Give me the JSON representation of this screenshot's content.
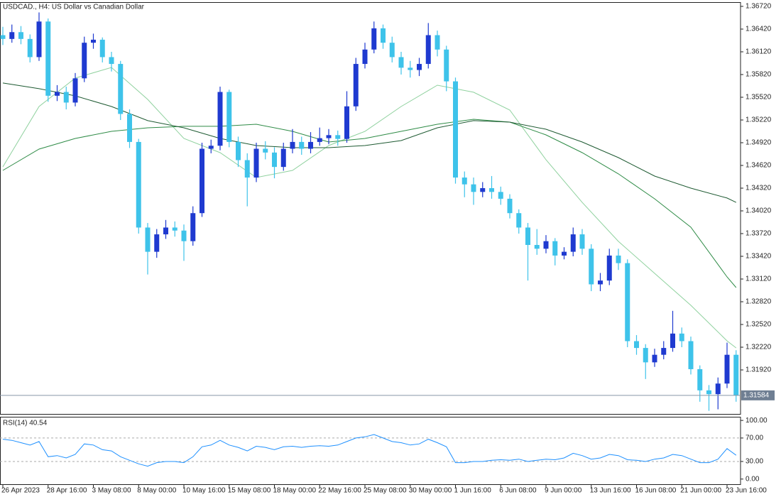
{
  "chart_data": [
    {
      "type": "candlestick",
      "title": "USDCAD., H4:  US Dollar vs Canadian Dollar",
      "categories": [
        "26 Apr 2023",
        null,
        null,
        null,
        null,
        "28 Apr 16:00",
        null,
        null,
        null,
        null,
        "3 May 08:00",
        null,
        null,
        null,
        null,
        "8 May 00:00",
        null,
        null,
        null,
        null,
        "10 May 16:00",
        null,
        null,
        null,
        null,
        "15 May 08:00",
        null,
        null,
        null,
        null,
        "18 May 00:00",
        null,
        null,
        null,
        null,
        "22 May 16:00",
        null,
        null,
        null,
        null,
        "25 May 08:00",
        null,
        null,
        null,
        null,
        "30 May 00:00",
        null,
        null,
        null,
        null,
        "1 Jun 16:00",
        null,
        null,
        null,
        null,
        "6 Jun 08:00",
        null,
        null,
        null,
        null,
        "9 Jun 00:00",
        null,
        null,
        null,
        null,
        "13 Jun 16:00",
        null,
        null,
        null,
        null,
        "16 Jun 08:00",
        null,
        null,
        null,
        null,
        "21 Jun 00:00",
        null,
        null,
        null,
        null,
        "23 Jun 16:00",
        null
      ],
      "ohlc": [
        [
          1.3634,
          1.3645,
          1.3621,
          1.3629
        ],
        [
          1.3629,
          1.3648,
          1.3624,
          1.3638
        ],
        [
          1.3638,
          1.3646,
          1.3622,
          1.3629
        ],
        [
          1.3629,
          1.3635,
          1.3598,
          1.3605
        ],
        [
          1.3605,
          1.3664,
          1.36,
          1.3652
        ],
        [
          1.3652,
          1.3656,
          1.3546,
          1.3554
        ],
        [
          1.3554,
          1.3568,
          1.3547,
          1.3559
        ],
        [
          1.3559,
          1.3566,
          1.3536,
          1.3545
        ],
        [
          1.3545,
          1.3584,
          1.354,
          1.3577
        ],
        [
          1.3577,
          1.3632,
          1.3572,
          1.3624
        ],
        [
          1.3624,
          1.3636,
          1.3616,
          1.3628
        ],
        [
          1.3628,
          1.3631,
          1.3598,
          1.3605
        ],
        [
          1.3605,
          1.3612,
          1.3586,
          1.3596
        ],
        [
          1.3596,
          1.36,
          1.3522,
          1.353
        ],
        [
          1.353,
          1.3536,
          1.3485,
          1.3493
        ],
        [
          1.3493,
          1.3497,
          1.3372,
          1.338
        ],
        [
          1.338,
          1.3386,
          1.3318,
          1.3348
        ],
        [
          1.3348,
          1.3378,
          1.334,
          1.3371
        ],
        [
          1.3371,
          1.339,
          1.3365,
          1.338
        ],
        [
          1.338,
          1.3388,
          1.3368,
          1.3376
        ],
        [
          1.3376,
          1.3384,
          1.3336,
          1.3362
        ],
        [
          1.3362,
          1.3408,
          1.3356,
          1.3399
        ],
        [
          1.3399,
          1.3492,
          1.3394,
          1.3484
        ],
        [
          1.3484,
          1.3496,
          1.3478,
          1.3488
        ],
        [
          1.3488,
          1.3566,
          1.3482,
          1.3559
        ],
        [
          1.3559,
          1.3562,
          1.3486,
          1.3493
        ],
        [
          1.3493,
          1.35,
          1.346,
          1.3469
        ],
        [
          1.3469,
          1.3478,
          1.3408,
          1.3446
        ],
        [
          1.3446,
          1.3492,
          1.344,
          1.3484
        ],
        [
          1.3484,
          1.3494,
          1.347,
          1.3479
        ],
        [
          1.3479,
          1.3486,
          1.3445,
          1.346
        ],
        [
          1.346,
          1.3492,
          1.3455,
          1.3484
        ],
        [
          1.3484,
          1.351,
          1.3478,
          1.3493
        ],
        [
          1.3493,
          1.35,
          1.3476,
          1.3484
        ],
        [
          1.3484,
          1.3506,
          1.3478,
          1.3493
        ],
        [
          1.3493,
          1.3512,
          1.3488,
          1.3498
        ],
        [
          1.3498,
          1.351,
          1.349,
          1.3502
        ],
        [
          1.3502,
          1.3508,
          1.3488,
          1.3497
        ],
        [
          1.3497,
          1.356,
          1.3492,
          1.354
        ],
        [
          1.354,
          1.3604,
          1.3534,
          1.3596
        ],
        [
          1.3596,
          1.3624,
          1.359,
          1.3615
        ],
        [
          1.3615,
          1.3652,
          1.361,
          1.3643
        ],
        [
          1.3643,
          1.3648,
          1.3616,
          1.3624
        ],
        [
          1.3624,
          1.3632,
          1.3598,
          1.3605
        ],
        [
          1.3605,
          1.3612,
          1.3582,
          1.3591
        ],
        [
          1.3591,
          1.36,
          1.3578,
          1.3588
        ],
        [
          1.3588,
          1.3604,
          1.358,
          1.3596
        ],
        [
          1.3596,
          1.365,
          1.359,
          1.3634
        ],
        [
          1.3634,
          1.364,
          1.3606,
          1.3615
        ],
        [
          1.3615,
          1.362,
          1.356,
          1.3573
        ],
        [
          1.3573,
          1.3578,
          1.3438,
          1.3446
        ],
        [
          1.3446,
          1.3454,
          1.342,
          1.3437
        ],
        [
          1.3437,
          1.3446,
          1.341,
          1.3427
        ],
        [
          1.3427,
          1.344,
          1.342,
          1.3432
        ],
        [
          1.3432,
          1.3448,
          1.3418,
          1.3427
        ],
        [
          1.3427,
          1.3434,
          1.341,
          1.3418
        ],
        [
          1.3418,
          1.3424,
          1.3392,
          1.3399
        ],
        [
          1.3399,
          1.3404,
          1.3372,
          1.338
        ],
        [
          1.338,
          1.3386,
          1.331,
          1.3357
        ],
        [
          1.3357,
          1.3378,
          1.3344,
          1.3352
        ],
        [
          1.3352,
          1.337,
          1.3346,
          1.3362
        ],
        [
          1.3362,
          1.3366,
          1.333,
          1.3343
        ],
        [
          1.3343,
          1.3354,
          1.3338,
          1.3348
        ],
        [
          1.3348,
          1.338,
          1.3342,
          1.3371
        ],
        [
          1.3371,
          1.3378,
          1.3344,
          1.3352
        ],
        [
          1.3352,
          1.3358,
          1.3296,
          1.3305
        ],
        [
          1.3305,
          1.332,
          1.3296,
          1.331
        ],
        [
          1.331,
          1.3352,
          1.3304,
          1.3343
        ],
        [
          1.3343,
          1.3352,
          1.3324,
          1.3333
        ],
        [
          1.3333,
          1.3338,
          1.3222,
          1.323
        ],
        [
          1.323,
          1.3238,
          1.3212,
          1.3221
        ],
        [
          1.3221,
          1.3226,
          1.318,
          1.3202
        ],
        [
          1.3202,
          1.322,
          1.3196,
          1.3212
        ],
        [
          1.3212,
          1.323,
          1.3206,
          1.3221
        ],
        [
          1.3221,
          1.327,
          1.3216,
          1.324
        ],
        [
          1.324,
          1.3248,
          1.3222,
          1.323
        ],
        [
          1.323,
          1.3236,
          1.3186,
          1.3193
        ],
        [
          1.3193,
          1.3198,
          1.315,
          1.3165
        ],
        [
          1.3165,
          1.3172,
          1.3138,
          1.316
        ],
        [
          1.316,
          1.3182,
          1.314,
          1.3174
        ],
        [
          1.3174,
          1.3228,
          1.3168,
          1.3212
        ],
        [
          1.3212,
          1.3218,
          1.315,
          1.31584
        ]
      ],
      "up_color": "#1f3ad0",
      "down_color": "#3ec3ea",
      "moving_averages": [
        {
          "color": "#8fd19e",
          "x": [
            0,
            4,
            8,
            12,
            16,
            20,
            24,
            28,
            32,
            36,
            40,
            44,
            48,
            52,
            56,
            60,
            64,
            68,
            72,
            76,
            80,
            81
          ],
          "values": [
            1.34601,
            1.35398,
            1.35773,
            1.35914,
            1.35492,
            1.34976,
            1.34789,
            1.34461,
            1.34554,
            1.34882,
            1.3507,
            1.35398,
            1.35679,
            1.35586,
            1.35351,
            1.34695,
            1.34132,
            1.33617,
            1.33195,
            1.32773,
            1.32304,
            1.32211
          ]
        },
        {
          "color": "#2e8b46",
          "x": [
            0,
            4,
            8,
            12,
            16,
            20,
            24,
            28,
            32,
            36,
            40,
            44,
            48,
            52,
            56,
            60,
            64,
            68,
            72,
            76,
            80,
            81
          ],
          "values": [
            1.34554,
            1.34836,
            1.34976,
            1.3507,
            1.35117,
            1.35136,
            1.35136,
            1.35164,
            1.3507,
            1.34929,
            1.34976,
            1.3507,
            1.35164,
            1.35229,
            1.35192,
            1.35023,
            1.34789,
            1.34508,
            1.34179,
            1.33804,
            1.33148,
            1.33008
          ]
        },
        {
          "color": "#1e5a32",
          "x": [
            0,
            4,
            8,
            12,
            16,
            20,
            24,
            28,
            32,
            36,
            40,
            44,
            48,
            52,
            56,
            60,
            64,
            68,
            72,
            76,
            80,
            81
          ],
          "values": [
            1.35708,
            1.35633,
            1.35539,
            1.35398,
            1.35211,
            1.35117,
            1.34976,
            1.34882,
            1.34854,
            1.34854,
            1.34882,
            1.34948,
            1.35117,
            1.35211,
            1.35192,
            1.35098,
            1.34929,
            1.34723,
            1.34479,
            1.3432,
            1.3419,
            1.34132
          ]
        }
      ],
      "last_price": 1.31584,
      "ylim": [
        1.31339,
        1.36776
      ],
      "yticks": [
        {
          "value": 1.3672,
          "label": "1.36720"
        },
        {
          "value": 1.3642,
          "label": "1.36420"
        },
        {
          "value": 1.3612,
          "label": "1.36120"
        },
        {
          "value": 1.3582,
          "label": "1.35820"
        },
        {
          "value": 1.3552,
          "label": "1.35520"
        },
        {
          "value": 1.3522,
          "label": "1.35220"
        },
        {
          "value": 1.3492,
          "label": "1.34920"
        },
        {
          "value": 1.3462,
          "label": "1.34620"
        },
        {
          "value": 1.3432,
          "label": "1.34320"
        },
        {
          "value": 1.3402,
          "label": "1.34020"
        },
        {
          "value": 1.3372,
          "label": "1.33720"
        },
        {
          "value": 1.3342,
          "label": "1.33420"
        },
        {
          "value": 1.3312,
          "label": "1.33120"
        },
        {
          "value": 1.3282,
          "label": "1.32820"
        },
        {
          "value": 1.3252,
          "label": "1.32520"
        },
        {
          "value": 1.3222,
          "label": "1.32220"
        },
        {
          "value": 1.3192,
          "label": "1.31920"
        }
      ],
      "grid": false
    },
    {
      "type": "line",
      "title": "RSI(14) 40.54",
      "color": "#1e90ff",
      "values": [
        68,
        66,
        62,
        58,
        64,
        38,
        40,
        36,
        42,
        60,
        58,
        50,
        48,
        38,
        32,
        26,
        22,
        28,
        30,
        30,
        28,
        38,
        55,
        58,
        66,
        58,
        54,
        48,
        56,
        54,
        50,
        55,
        56,
        54,
        56,
        57,
        56,
        58,
        64,
        70,
        72,
        76,
        70,
        64,
        62,
        58,
        60,
        68,
        62,
        55,
        28,
        28,
        30,
        30,
        32,
        33,
        32,
        34,
        30,
        32,
        34,
        33,
        36,
        44,
        40,
        34,
        36,
        42,
        40,
        33,
        32,
        30,
        34,
        36,
        42,
        40,
        34,
        28,
        28,
        34,
        52,
        40.54
      ],
      "levels": [
        70,
        30
      ],
      "ylim": [
        -10,
        105
      ],
      "yticks": [
        {
          "value": 100,
          "label": "100.00"
        },
        {
          "value": 70,
          "label": "70.00"
        },
        {
          "value": 30,
          "label": "30.00"
        },
        {
          "value": 0,
          "label": "0.00"
        }
      ]
    }
  ]
}
